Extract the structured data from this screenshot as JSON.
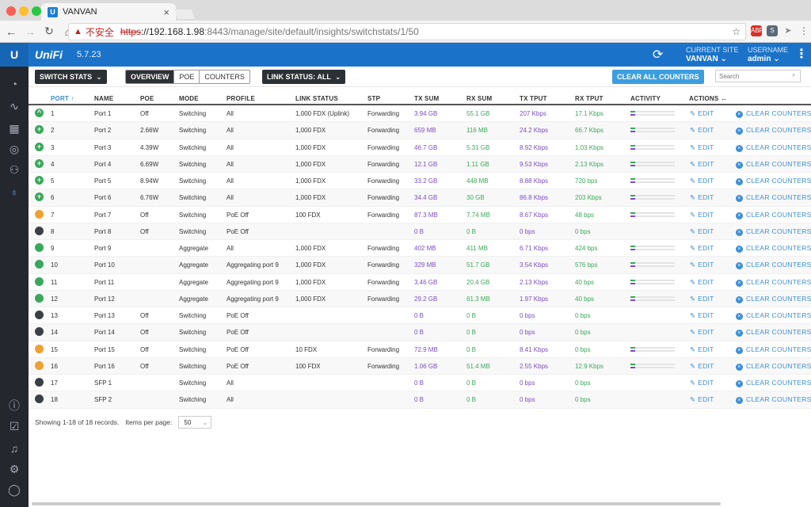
{
  "browser": {
    "tab_title": "VANVAN",
    "insecure_label": "不安全",
    "url_https": "https",
    "url_host": "://192.168.1.98",
    "url_path": ":8443/manage/site/default/insights/switchstats/1/50"
  },
  "header": {
    "brand": "UniFi",
    "version": "5.7.23",
    "current_site_label": "CURRENT SITE",
    "current_site_value": "VANVAN",
    "username_label": "USERNAME",
    "username_value": "admin"
  },
  "toolbar": {
    "switch_stats": "SWITCH STATS",
    "tabs": [
      "OVERVIEW",
      "POE",
      "COUNTERS"
    ],
    "link_status": "LINK STATUS: ALL",
    "clear_all": "CLEAR ALL COUNTERS",
    "search_placeholder": "Search"
  },
  "table": {
    "headers": [
      "PORT ↑",
      "NAME",
      "POE",
      "MODE",
      "PROFILE",
      "LINK STATUS",
      "STP",
      "TX SUM",
      "RX SUM",
      "TX TPUT",
      "RX TPUT",
      "ACTIVITY",
      "ACTIONS ↔"
    ],
    "edit_label": "EDIT",
    "clear_label": "CLEAR COUNTERS",
    "rows": [
      {
        "status": "uplink",
        "port": "1",
        "name": "Port 1",
        "poe": "Off",
        "mode": "Switching",
        "profile": "All",
        "link": "1,000 FDX (Uplink)",
        "stp": "Forwarding",
        "tx": "3.94 GB",
        "rx": "55.1 GB",
        "txt": "207 Kbps",
        "rxt": "17.1 Kbps",
        "activity": true
      },
      {
        "status": "poe",
        "port": "2",
        "name": "Port 2",
        "poe": "2.66W",
        "mode": "Switching",
        "profile": "All",
        "link": "1,000 FDX",
        "stp": "Forwarding",
        "tx": "659 MB",
        "rx": "116 MB",
        "txt": "24.2 Kbps",
        "rxt": "66.7 Kbps",
        "activity": true
      },
      {
        "status": "poe",
        "port": "3",
        "name": "Port 3",
        "poe": "4.39W",
        "mode": "Switching",
        "profile": "All",
        "link": "1,000 FDX",
        "stp": "Forwarding",
        "tx": "46.7 GB",
        "rx": "5.31 GB",
        "txt": "8.92 Kbps",
        "rxt": "1.03 Kbps",
        "activity": true
      },
      {
        "status": "poe",
        "port": "4",
        "name": "Port 4",
        "poe": "6.69W",
        "mode": "Switching",
        "profile": "All",
        "link": "1,000 FDX",
        "stp": "Forwarding",
        "tx": "12.1 GB",
        "rx": "1.11 GB",
        "txt": "9.53 Kbps",
        "rxt": "2.13 Kbps",
        "activity": true
      },
      {
        "status": "poe",
        "port": "5",
        "name": "Port 5",
        "poe": "8.94W",
        "mode": "Switching",
        "profile": "All",
        "link": "1,000 FDX",
        "stp": "Forwarding",
        "tx": "33.2 GB",
        "rx": "448 MB",
        "txt": "8.88 Kbps",
        "rxt": "720 bps",
        "activity": true
      },
      {
        "status": "poe",
        "port": "6",
        "name": "Port 6",
        "poe": "6.76W",
        "mode": "Switching",
        "profile": "All",
        "link": "1,000 FDX",
        "stp": "Forwarding",
        "tx": "34.4 GB",
        "rx": "30 GB",
        "txt": "86.8 Kbps",
        "rxt": "203 Kbps",
        "activity": true
      },
      {
        "status": "orange",
        "port": "7",
        "name": "Port 7",
        "poe": "Off",
        "mode": "Switching",
        "profile": "PoE Off",
        "link": "100 FDX",
        "stp": "Forwarding",
        "tx": "87.3 MB",
        "rx": "7.74 MB",
        "txt": "8.67 Kbps",
        "rxt": "48 bps",
        "activity": true
      },
      {
        "status": "gray",
        "port": "8",
        "name": "Port 8",
        "poe": "Off",
        "mode": "Switching",
        "profile": "PoE Off",
        "link": "",
        "stp": "",
        "tx": "0 B",
        "rx": "0 B",
        "txt": "0 bps",
        "rxt": "0 bps",
        "activity": false
      },
      {
        "status": "green",
        "port": "9",
        "name": "Port 9",
        "poe": "",
        "mode": "Aggregate",
        "profile": "All",
        "link": "1,000 FDX",
        "stp": "Forwarding",
        "tx": "402 MB",
        "rx": "411 MB",
        "txt": "6.71 Kbps",
        "rxt": "424 bps",
        "activity": true
      },
      {
        "status": "green",
        "port": "10",
        "name": "Port 10",
        "poe": "",
        "mode": "Aggregate",
        "profile": "Aggregating port 9",
        "link": "1,000 FDX",
        "stp": "Forwarding",
        "tx": "329 MB",
        "rx": "51.7 GB",
        "txt": "3.54 Kbps",
        "rxt": "576 bps",
        "activity": true
      },
      {
        "status": "green",
        "port": "11",
        "name": "Port 11",
        "poe": "",
        "mode": "Aggregate",
        "profile": "Aggregating port 9",
        "link": "1,000 FDX",
        "stp": "Forwarding",
        "tx": "3.46 GB",
        "rx": "20.4 GB",
        "txt": "2.13 Kbps",
        "rxt": "40 bps",
        "activity": true
      },
      {
        "status": "green",
        "port": "12",
        "name": "Port 12",
        "poe": "",
        "mode": "Aggregate",
        "profile": "Aggregating port 9",
        "link": "1,000 FDX",
        "stp": "Forwarding",
        "tx": "29.2 GB",
        "rx": "61.3 MB",
        "txt": "1.97 Kbps",
        "rxt": "40 bps",
        "activity": true
      },
      {
        "status": "gray",
        "port": "13",
        "name": "Port 13",
        "poe": "Off",
        "mode": "Switching",
        "profile": "PoE Off",
        "link": "",
        "stp": "",
        "tx": "0 B",
        "rx": "0 B",
        "txt": "0 bps",
        "rxt": "0 bps",
        "activity": false
      },
      {
        "status": "gray",
        "port": "14",
        "name": "Port 14",
        "poe": "Off",
        "mode": "Switching",
        "profile": "PoE Off",
        "link": "",
        "stp": "",
        "tx": "0 B",
        "rx": "0 B",
        "txt": "0 bps",
        "rxt": "0 bps",
        "activity": false
      },
      {
        "status": "orange",
        "port": "15",
        "name": "Port 15",
        "poe": "Off",
        "mode": "Switching",
        "profile": "PoE Off",
        "link": "10 FDX",
        "stp": "Forwarding",
        "tx": "72.9 MB",
        "rx": "0 B",
        "txt": "8.41 Kbps",
        "rxt": "0 bps",
        "activity": true
      },
      {
        "status": "orange",
        "port": "16",
        "name": "Port 16",
        "poe": "Off",
        "mode": "Switching",
        "profile": "PoE Off",
        "link": "100 FDX",
        "stp": "Forwarding",
        "tx": "1.06 GB",
        "rx": "51.4 MB",
        "txt": "2.55 Kbps",
        "rxt": "12.9 Kbps",
        "activity": true
      },
      {
        "status": "gray",
        "port": "17",
        "name": "SFP 1",
        "poe": "",
        "mode": "Switching",
        "profile": "All",
        "link": "",
        "stp": "",
        "tx": "0 B",
        "rx": "0 B",
        "txt": "0 bps",
        "rxt": "0 bps",
        "activity": false
      },
      {
        "status": "gray",
        "port": "18",
        "name": "SFP 2",
        "poe": "",
        "mode": "Switching",
        "profile": "All",
        "link": "",
        "stp": "",
        "tx": "0 B",
        "rx": "0 B",
        "txt": "0 bps",
        "rxt": "0 bps",
        "activity": false
      }
    ]
  },
  "footer": {
    "showing": "Showing 1-18 of 18 records.",
    "items_per_page_label": "Items per page:",
    "items_per_page": "50"
  },
  "colors": {
    "uplink": "#3aa85a",
    "poe": "#3aa85a",
    "green": "#3aa85a",
    "orange": "#f0a030",
    "gray": "#3b3f46"
  },
  "icons": {
    "poe": "+",
    "uplink": "^"
  }
}
